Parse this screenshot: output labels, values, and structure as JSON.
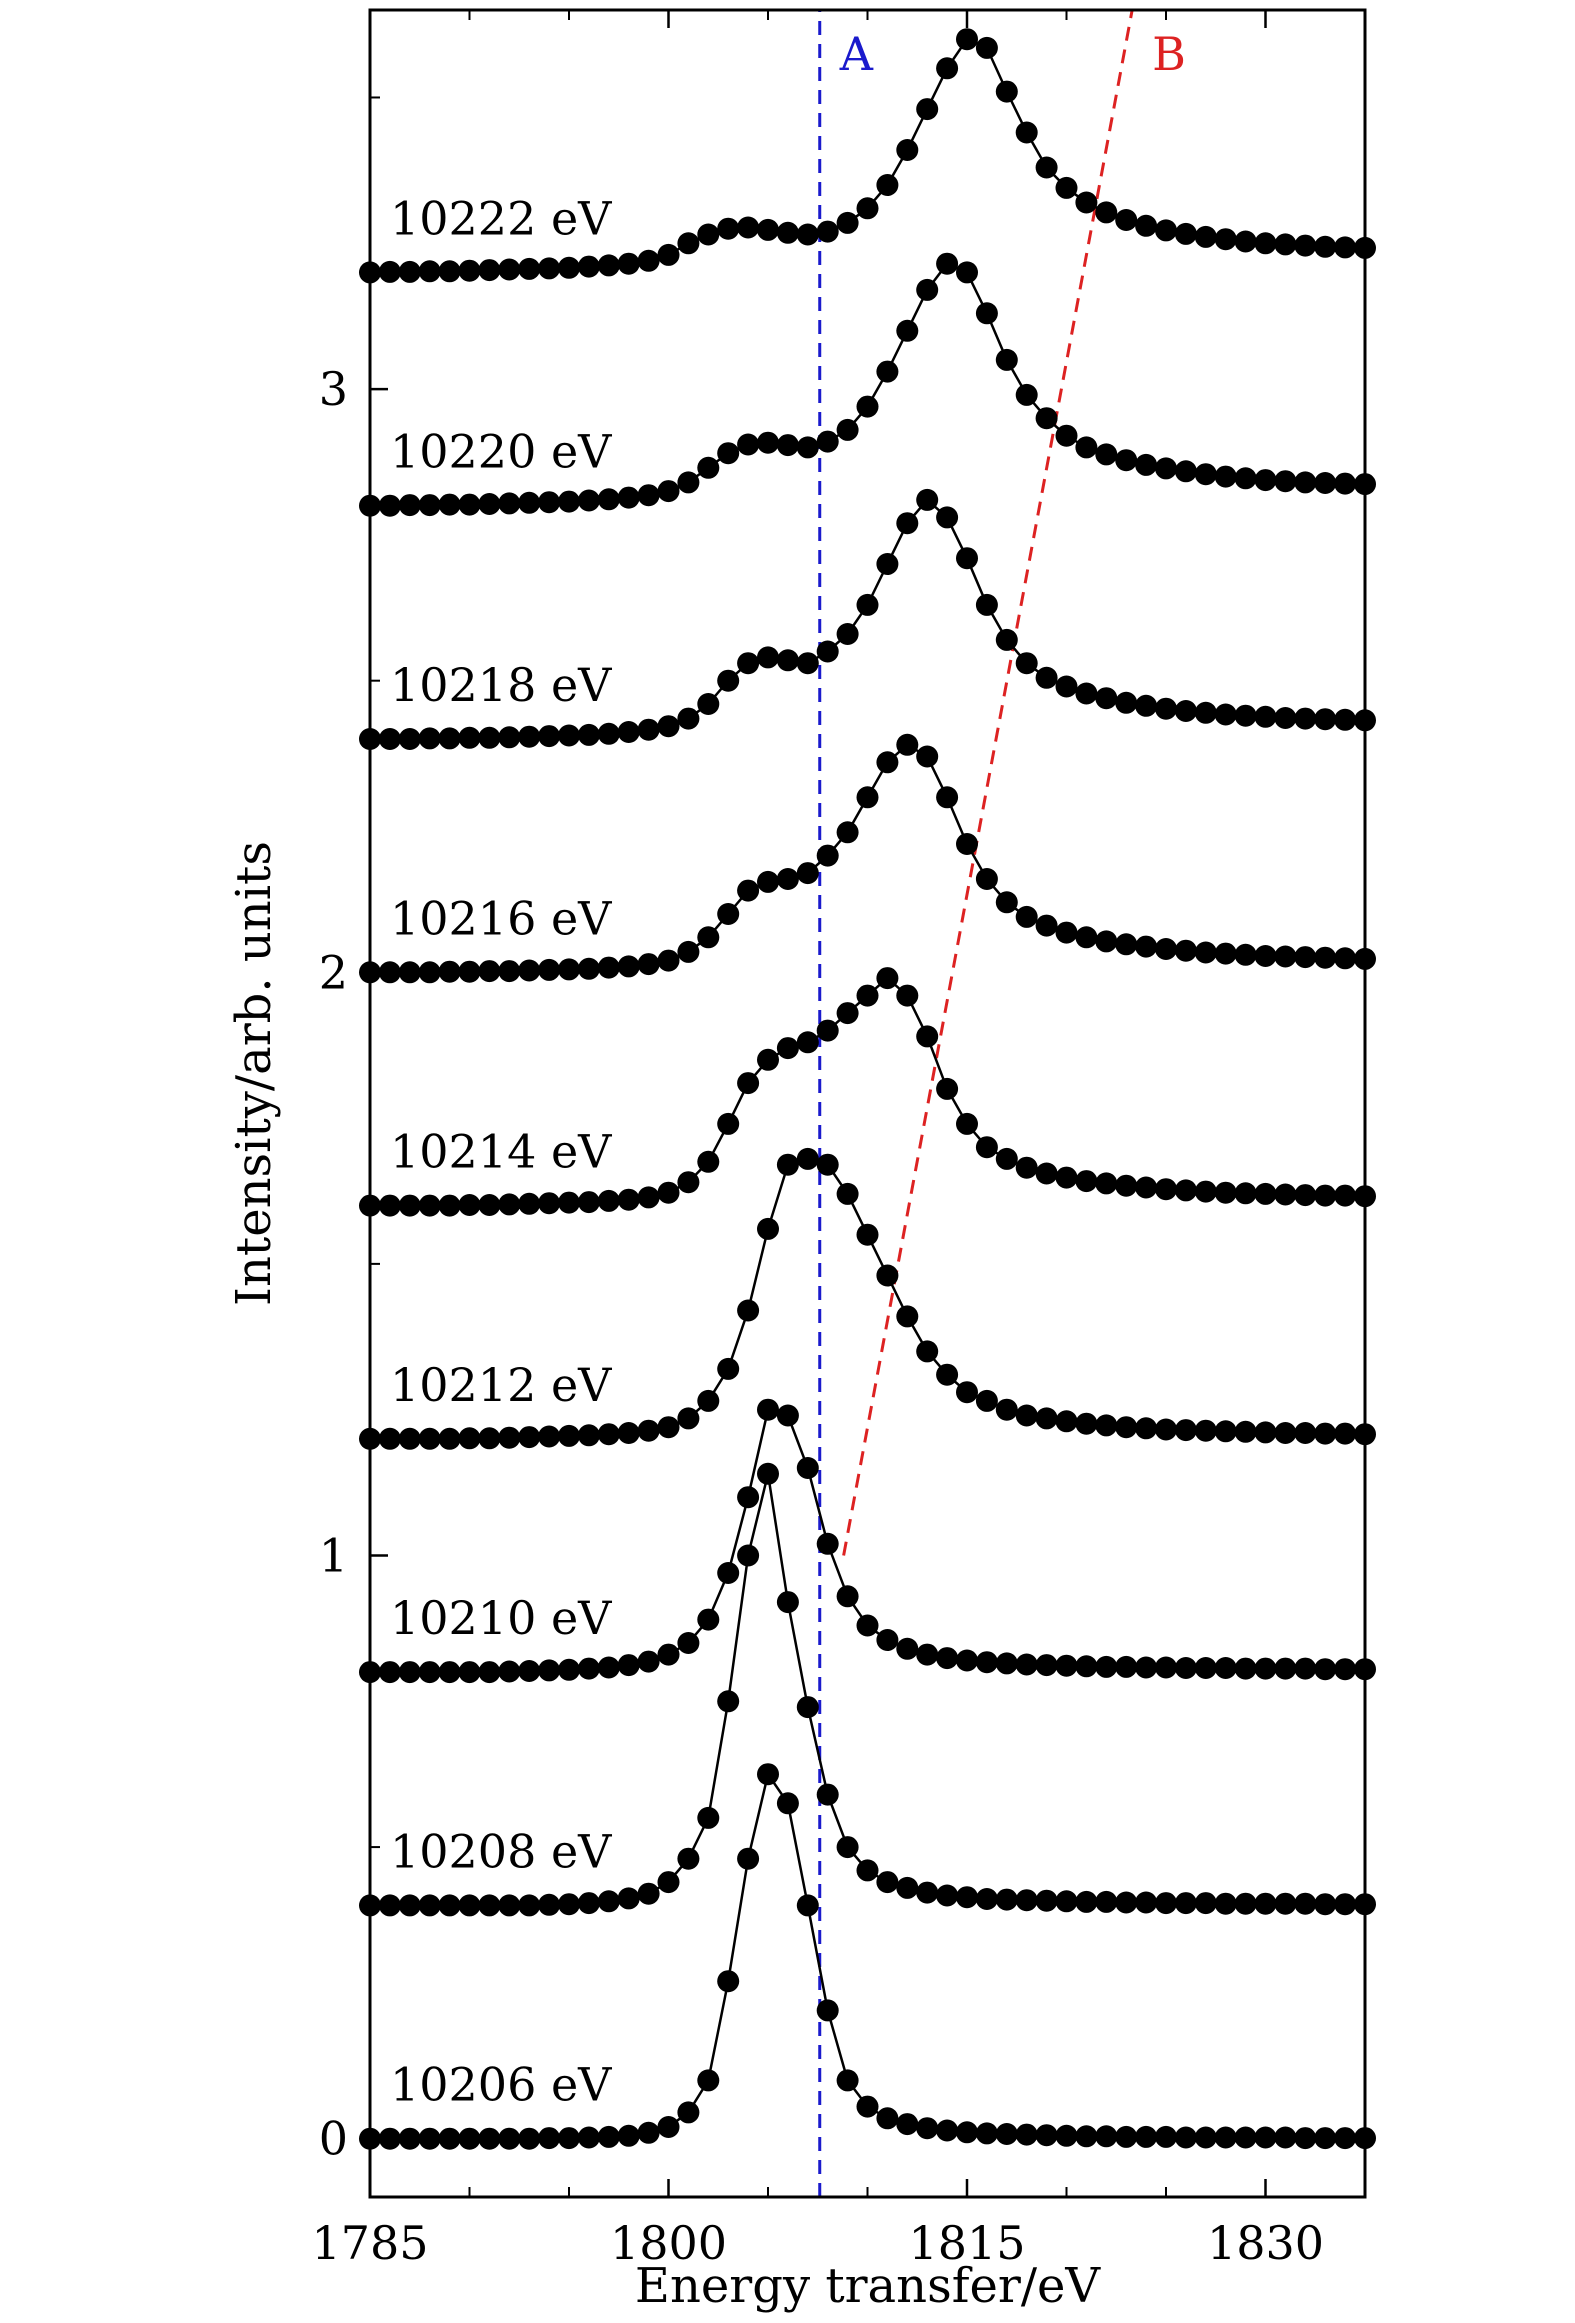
{
  "chart_data": {
    "type": "scatter",
    "xlabel": "Energy transfer/eV",
    "ylabel": "Intensity/arb. units",
    "xlim": [
      1785,
      1835
    ],
    "ylim": [
      -0.1,
      3.65
    ],
    "x_ticks": [
      1785,
      1800,
      1815,
      1830
    ],
    "y_ticks": [
      0,
      1,
      2,
      3
    ],
    "grid": false,
    "marker_color": "#000000",
    "line_color": "#000000",
    "curve_labels": [
      "10206 eV",
      "10208 eV",
      "10210 eV",
      "10212 eV",
      "10214 eV",
      "10216 eV",
      "10218 eV",
      "10220 eV",
      "10222 eV"
    ],
    "x": [
      1785,
      1786,
      1787,
      1788,
      1789,
      1790,
      1791,
      1792,
      1793,
      1794,
      1795,
      1796,
      1797,
      1798,
      1799,
      1800,
      1801,
      1802,
      1803,
      1804,
      1805,
      1806,
      1807,
      1808,
      1809,
      1810,
      1811,
      1812,
      1813,
      1814,
      1815,
      1816,
      1817,
      1818,
      1819,
      1820,
      1821,
      1822,
      1823,
      1824,
      1825,
      1826,
      1827,
      1828,
      1829,
      1830,
      1831,
      1832,
      1833,
      1834,
      1835
    ],
    "series": [
      {
        "offset": 0.0,
        "values": [
          0.0,
          0.0,
          0.0,
          0.0,
          0.0,
          0.0,
          0.0,
          0.0,
          0.0,
          0.001,
          0.001,
          0.002,
          0.003,
          0.005,
          0.01,
          0.02,
          0.045,
          0.1,
          0.27,
          0.48,
          0.625,
          0.575,
          0.4,
          0.22,
          0.1,
          0.055,
          0.035,
          0.025,
          0.018,
          0.014,
          0.011,
          0.009,
          0.008,
          0.007,
          0.006,
          0.005,
          0.004,
          0.004,
          0.003,
          0.003,
          0.003,
          0.002,
          0.002,
          0.002,
          0.002,
          0.002,
          0.002,
          0.001,
          0.001,
          0.001,
          0.001
        ]
      },
      {
        "offset": 0.4,
        "values": [
          0.0,
          0.0,
          0.0,
          0.0,
          0.0,
          0.0,
          0.0,
          0.0,
          0.0,
          0.001,
          0.002,
          0.004,
          0.007,
          0.012,
          0.02,
          0.04,
          0.08,
          0.15,
          0.35,
          0.6,
          0.74,
          0.52,
          0.34,
          0.19,
          0.1,
          0.06,
          0.04,
          0.03,
          0.022,
          0.017,
          0.014,
          0.011,
          0.01,
          0.009,
          0.008,
          0.007,
          0.006,
          0.006,
          0.005,
          0.005,
          0.004,
          0.004,
          0.004,
          0.003,
          0.003,
          0.003,
          0.003,
          0.003,
          0.002,
          0.002,
          0.002
        ]
      },
      {
        "offset": 0.8,
        "values": [
          0.0,
          0.0,
          0.0,
          0.0,
          0.0,
          0.0,
          0.0,
          0.001,
          0.002,
          0.003,
          0.004,
          0.006,
          0.008,
          0.012,
          0.018,
          0.03,
          0.05,
          0.09,
          0.17,
          0.3,
          0.45,
          0.44,
          0.35,
          0.22,
          0.13,
          0.08,
          0.055,
          0.04,
          0.03,
          0.024,
          0.02,
          0.017,
          0.015,
          0.013,
          0.012,
          0.011,
          0.01,
          0.009,
          0.009,
          0.008,
          0.008,
          0.007,
          0.007,
          0.007,
          0.006,
          0.006,
          0.006,
          0.006,
          0.005,
          0.005,
          0.005
        ]
      },
      {
        "offset": 1.2,
        "values": [
          0.0,
          0.0,
          0.0,
          0.0,
          0.0,
          0.001,
          0.001,
          0.002,
          0.003,
          0.004,
          0.005,
          0.006,
          0.008,
          0.01,
          0.014,
          0.02,
          0.035,
          0.065,
          0.12,
          0.22,
          0.36,
          0.47,
          0.48,
          0.47,
          0.42,
          0.35,
          0.28,
          0.21,
          0.15,
          0.11,
          0.08,
          0.065,
          0.05,
          0.04,
          0.035,
          0.03,
          0.026,
          0.023,
          0.02,
          0.018,
          0.016,
          0.015,
          0.014,
          0.013,
          0.012,
          0.011,
          0.01,
          0.01,
          0.009,
          0.009,
          0.008
        ]
      },
      {
        "offset": 1.6,
        "values": [
          0.0,
          0.0,
          0.0,
          0.0,
          0.0,
          0.001,
          0.001,
          0.002,
          0.003,
          0.004,
          0.005,
          0.006,
          0.008,
          0.01,
          0.014,
          0.022,
          0.04,
          0.075,
          0.14,
          0.21,
          0.25,
          0.27,
          0.28,
          0.3,
          0.33,
          0.36,
          0.39,
          0.36,
          0.29,
          0.2,
          0.14,
          0.1,
          0.08,
          0.065,
          0.055,
          0.048,
          0.042,
          0.038,
          0.034,
          0.031,
          0.028,
          0.026,
          0.024,
          0.022,
          0.021,
          0.02,
          0.019,
          0.018,
          0.017,
          0.017,
          0.016
        ]
      },
      {
        "offset": 2.0,
        "values": [
          0.0,
          0.0,
          0.0,
          0.0,
          0.001,
          0.001,
          0.002,
          0.002,
          0.003,
          0.004,
          0.005,
          0.006,
          0.008,
          0.01,
          0.014,
          0.02,
          0.035,
          0.06,
          0.1,
          0.14,
          0.155,
          0.16,
          0.17,
          0.2,
          0.24,
          0.3,
          0.36,
          0.39,
          0.37,
          0.3,
          0.22,
          0.16,
          0.12,
          0.095,
          0.08,
          0.068,
          0.06,
          0.053,
          0.048,
          0.044,
          0.04,
          0.037,
          0.034,
          0.032,
          0.03,
          0.028,
          0.027,
          0.026,
          0.025,
          0.024,
          0.023
        ]
      },
      {
        "offset": 2.4,
        "values": [
          0.0,
          0.0,
          0.0,
          0.001,
          0.001,
          0.002,
          0.002,
          0.003,
          0.004,
          0.005,
          0.006,
          0.007,
          0.009,
          0.012,
          0.016,
          0.022,
          0.035,
          0.06,
          0.1,
          0.13,
          0.14,
          0.135,
          0.13,
          0.15,
          0.18,
          0.23,
          0.3,
          0.37,
          0.41,
          0.38,
          0.31,
          0.23,
          0.17,
          0.13,
          0.105,
          0.09,
          0.078,
          0.07,
          0.062,
          0.057,
          0.052,
          0.048,
          0.045,
          0.042,
          0.04,
          0.038,
          0.036,
          0.035,
          0.034,
          0.033,
          0.032
        ]
      },
      {
        "offset": 2.8,
        "values": [
          0.0,
          0.0,
          0.001,
          0.001,
          0.002,
          0.002,
          0.003,
          0.004,
          0.005,
          0.006,
          0.007,
          0.009,
          0.011,
          0.014,
          0.018,
          0.025,
          0.04,
          0.065,
          0.09,
          0.105,
          0.108,
          0.104,
          0.1,
          0.11,
          0.13,
          0.17,
          0.23,
          0.3,
          0.37,
          0.415,
          0.4,
          0.33,
          0.25,
          0.19,
          0.15,
          0.12,
          0.1,
          0.088,
          0.078,
          0.07,
          0.064,
          0.059,
          0.054,
          0.05,
          0.047,
          0.044,
          0.042,
          0.04,
          0.039,
          0.038,
          0.037
        ]
      },
      {
        "offset": 3.2,
        "values": [
          0.0,
          0.001,
          0.001,
          0.002,
          0.002,
          0.003,
          0.004,
          0.005,
          0.006,
          0.007,
          0.008,
          0.01,
          0.012,
          0.015,
          0.02,
          0.03,
          0.05,
          0.065,
          0.075,
          0.077,
          0.073,
          0.068,
          0.065,
          0.07,
          0.085,
          0.11,
          0.15,
          0.21,
          0.28,
          0.35,
          0.4,
          0.385,
          0.31,
          0.24,
          0.18,
          0.145,
          0.12,
          0.103,
          0.09,
          0.08,
          0.072,
          0.066,
          0.061,
          0.057,
          0.053,
          0.05,
          0.048,
          0.046,
          0.044,
          0.043,
          0.042
        ]
      }
    ],
    "reference_lines": [
      {
        "label": "A",
        "color": "#1a1acc",
        "points": [
          [
            1807.6,
            -0.1
          ],
          [
            1807.6,
            3.65
          ]
        ]
      },
      {
        "label": "B",
        "color": "#dd2222",
        "points": [
          [
            1808.8,
            1.0
          ],
          [
            1823.3,
            3.65
          ]
        ]
      }
    ]
  }
}
